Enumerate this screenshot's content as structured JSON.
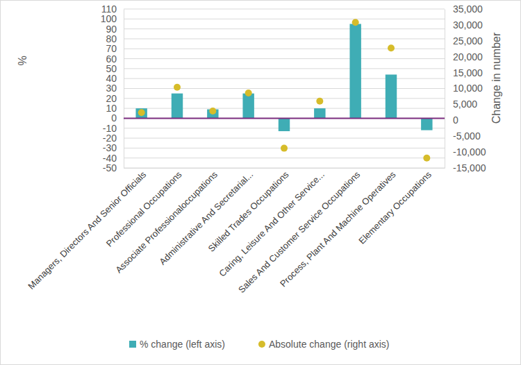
{
  "chart_data": {
    "type": "bar",
    "categories": [
      "Managers, Directors And Senior Officials",
      "Professional Occupations",
      "Associate Professionaloccupations",
      "Administrative And Secretarial...",
      "Skilled Trades Occupations",
      "Caring, Leisure And Other Service...",
      "Sales And Customer Service Occupations",
      "Process, Plant And Machine Operatives",
      "Elementary Occupations"
    ],
    "series": [
      {
        "name": "% change (left axis)",
        "type": "bar",
        "color": "#3fadb5",
        "values": [
          10,
          25,
          9,
          25,
          -13,
          10,
          95,
          44,
          -12
        ]
      },
      {
        "name": "Absolute change (right axis)",
        "type": "scatter",
        "marker": "circle",
        "axis": "y2",
        "color": "#d6bc2a",
        "values": [
          2400,
          10400,
          2900,
          8600,
          -8800,
          6000,
          30800,
          22700,
          -11900
        ]
      }
    ],
    "y_label": "%",
    "y2_label": "Change in number",
    "ylim": [
      -50,
      110
    ],
    "yticks": [
      -50,
      -40,
      -30,
      -20,
      -10,
      0,
      10,
      20,
      30,
      40,
      50,
      60,
      70,
      80,
      90,
      100,
      110
    ],
    "y2lim": [
      -15000,
      35000
    ],
    "y2ticks": [
      {
        "value": -15000,
        "label": "-15,000"
      },
      {
        "value": -10000,
        "label": "-10,000"
      },
      {
        "value": -5000,
        "label": "-5,000"
      },
      0,
      {
        "value": 5000,
        "label": "5,000"
      },
      {
        "value": 10000,
        "label": "10,000"
      },
      {
        "value": 15000,
        "label": "15,000"
      },
      {
        "value": 20000,
        "label": "20,000"
      },
      {
        "value": 25000,
        "label": "25,000"
      },
      {
        "value": 30000,
        "label": "30,000"
      },
      {
        "value": 35000,
        "label": "35,000"
      }
    ],
    "grid": true,
    "legend": "bottom"
  }
}
